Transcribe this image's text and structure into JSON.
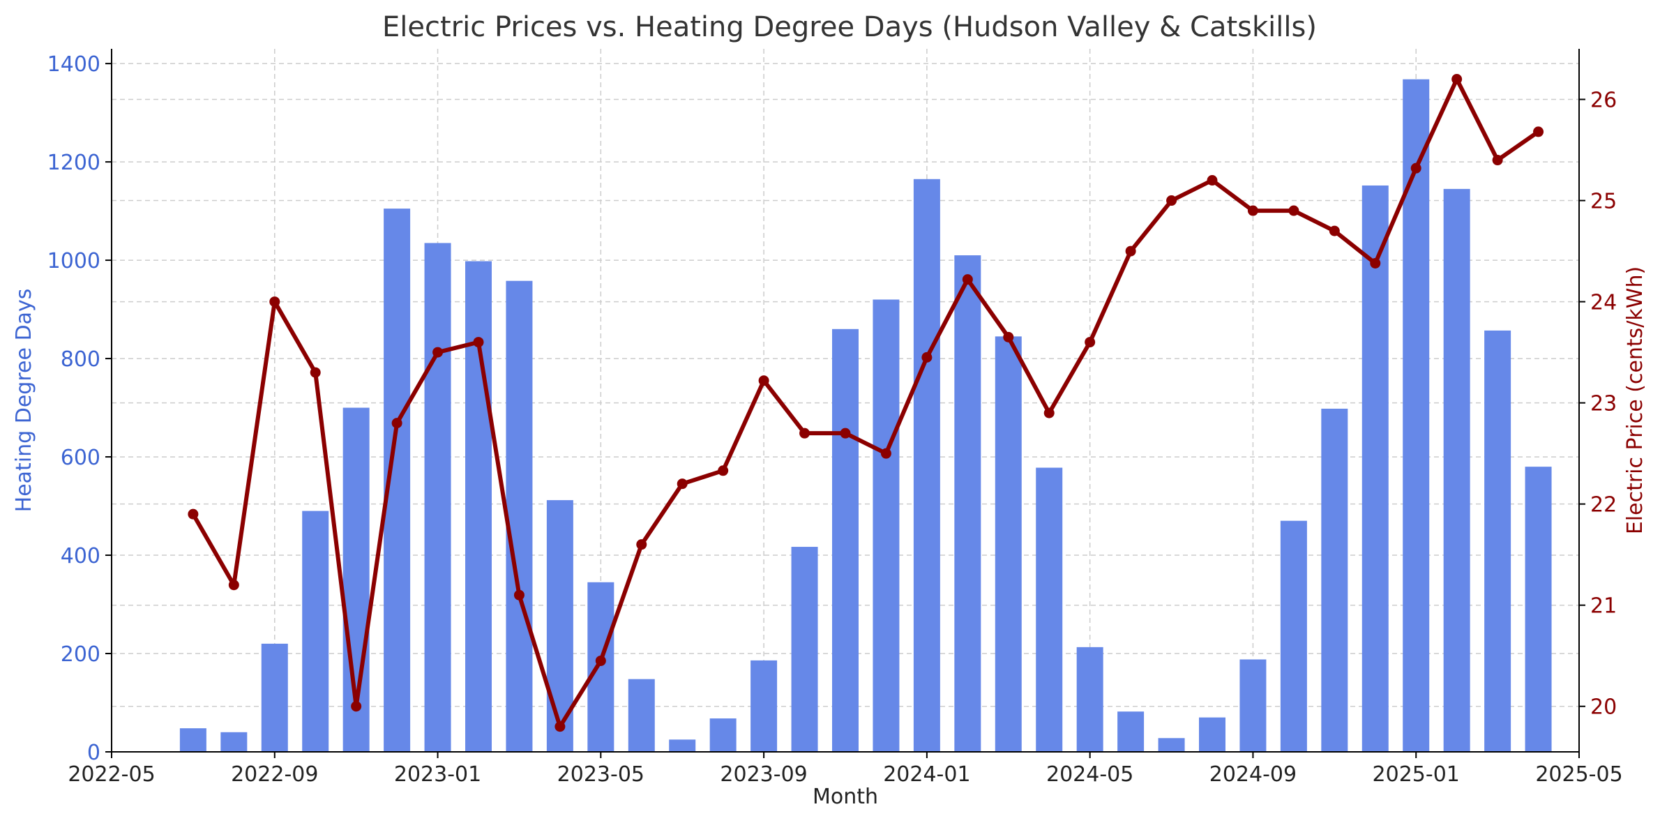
{
  "chart_data": {
    "type": "bar+line",
    "title": "Electric Prices vs. Heating Degree Days (Hudson Valley & Catskills)",
    "xlabel": "Month",
    "ylabel_left": "Heating Degree Days",
    "ylabel_right": "Electric Price (cents/kWh)",
    "x_ticks": [
      "2022-05",
      "2022-09",
      "2023-01",
      "2023-05",
      "2023-09",
      "2024-01",
      "2024-05",
      "2024-09",
      "2025-01",
      "2025-05"
    ],
    "y_left_ticks": [
      0,
      200,
      400,
      600,
      800,
      1000,
      1200,
      1400
    ],
    "y_right_ticks": [
      20,
      21,
      22,
      23,
      24,
      25,
      26
    ],
    "xlim": [
      "2022-05",
      "2025-05"
    ],
    "ylim_left": [
      0,
      1430
    ],
    "ylim_right": [
      19.55,
      26.5
    ],
    "grid": true,
    "colors": {
      "bars": "#6688e8",
      "line": "#8b0000",
      "left_axis": "#3c64d2",
      "right_axis": "#8b0000"
    },
    "months": [
      "2022-07",
      "2022-08",
      "2022-09",
      "2022-10",
      "2022-11",
      "2022-12",
      "2023-01",
      "2023-02",
      "2023-03",
      "2023-04",
      "2023-05",
      "2023-06",
      "2023-07",
      "2023-08",
      "2023-09",
      "2023-10",
      "2023-11",
      "2023-12",
      "2024-01",
      "2024-02",
      "2024-03",
      "2024-04",
      "2024-05",
      "2024-06",
      "2024-07",
      "2024-08",
      "2024-09",
      "2024-10",
      "2024-11",
      "2024-12",
      "2025-01",
      "2025-02",
      "2025-03",
      "2025-04"
    ],
    "series": [
      {
        "name": "Heating Degree Days",
        "type": "bar",
        "axis": "left",
        "values": [
          48,
          40,
          220,
          490,
          700,
          1105,
          1035,
          998,
          958,
          512,
          345,
          148,
          25,
          68,
          186,
          417,
          860,
          920,
          1165,
          1010,
          845,
          578,
          213,
          82,
          28,
          70,
          188,
          470,
          698,
          1152,
          1368,
          1145,
          857,
          580
        ]
      },
      {
        "name": "Electric Price",
        "type": "line",
        "axis": "right",
        "values": [
          21.9,
          21.2,
          24.0,
          23.3,
          20.0,
          22.8,
          23.5,
          23.6,
          21.1,
          19.8,
          20.45,
          21.6,
          22.2,
          22.33,
          23.22,
          22.7,
          22.7,
          22.5,
          23.45,
          24.22,
          23.65,
          22.9,
          23.6,
          24.5,
          25.0,
          25.2,
          24.9,
          24.9,
          24.7,
          24.38,
          25.32,
          26.2,
          25.4,
          25.68
        ]
      }
    ]
  }
}
